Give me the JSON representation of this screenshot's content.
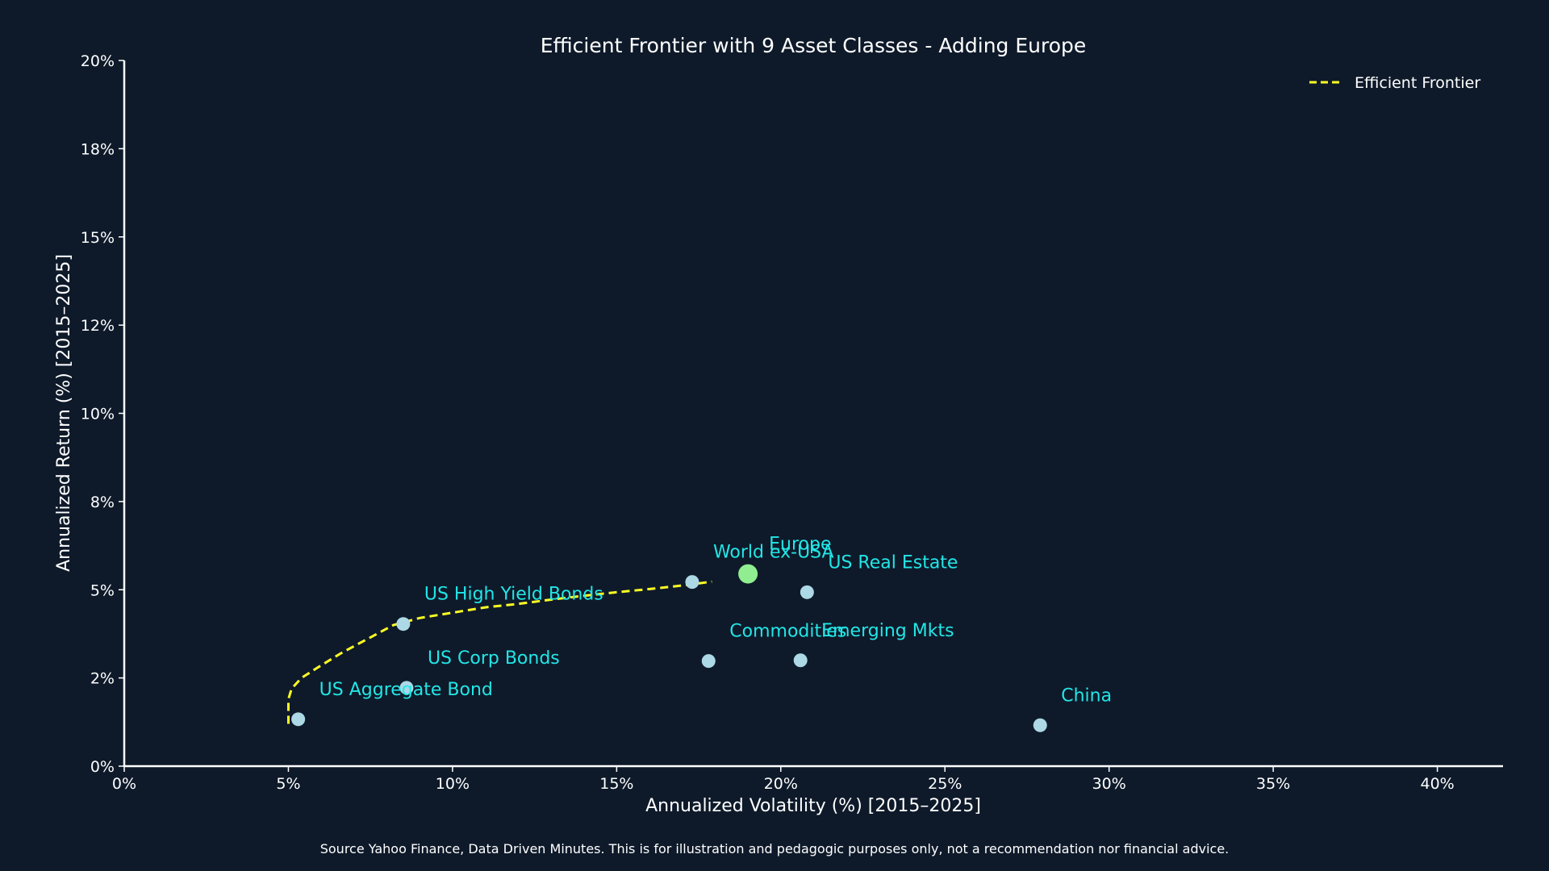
{
  "colors": {
    "background": "#0e1a2a",
    "axis": "#ffffff",
    "text": "#ffffff",
    "frontier": "#ffff22",
    "asset_point": "#add8e6",
    "highlight_point": "#90ee90",
    "asset_label": "#22e6e6"
  },
  "chart_data": {
    "type": "scatter",
    "title": "Efficient Frontier with 9 Asset Classes - Adding Europe",
    "xlabel": "Annualized Volatility (%) [2015–2025]",
    "ylabel": "Annualized Return (%) [2015–2025]",
    "xlim": [
      0,
      42
    ],
    "ylim": [
      0,
      20
    ],
    "xticks": [
      0,
      5,
      10,
      15,
      20,
      25,
      30,
      35,
      40
    ],
    "xtick_labels": [
      "0%",
      "5%",
      "10%",
      "15%",
      "20%",
      "25%",
      "30%",
      "35%",
      "40%"
    ],
    "yticks": [
      0,
      2.5,
      5,
      7.5,
      10,
      12.5,
      15,
      17.5,
      20
    ],
    "ytick_labels": [
      "0%",
      "2%",
      "5%",
      "8%",
      "10%",
      "12%",
      "15%",
      "18%",
      "20%"
    ],
    "grid": false,
    "legend": {
      "position": "top-right",
      "entries": [
        {
          "label": "Efficient Frontier",
          "style": "dashed-line"
        }
      ]
    },
    "series": [
      {
        "name": "Efficient Frontier",
        "kind": "line",
        "x": [
          5.0,
          5.0,
          5.1,
          5.4,
          5.9,
          6.6,
          7.4,
          8.2,
          9.0,
          10.0,
          11.0,
          12.0,
          13.0,
          14.0,
          15.0,
          16.0,
          17.0,
          17.9
        ],
        "y": [
          1.2,
          1.9,
          2.2,
          2.5,
          2.8,
          3.2,
          3.6,
          4.0,
          4.2,
          4.35,
          4.5,
          4.6,
          4.72,
          4.83,
          4.93,
          5.02,
          5.12,
          5.23
        ]
      },
      {
        "kind": "points",
        "points": [
          {
            "label": "US Aggregate Bond",
            "x": 5.3,
            "y": 1.33
          },
          {
            "label": "US Corp Bonds",
            "x": 8.6,
            "y": 2.22
          },
          {
            "label": "US High Yield Bonds",
            "x": 8.5,
            "y": 4.03
          },
          {
            "label": "World ex-USA",
            "x": 17.3,
            "y": 5.22
          },
          {
            "label": "Europe",
            "x": 19.0,
            "y": 5.45,
            "highlight": true
          },
          {
            "label": "US Real Estate",
            "x": 20.8,
            "y": 4.93
          },
          {
            "label": "Commodities",
            "x": 17.8,
            "y": 2.98
          },
          {
            "label": "Emerging Mkts",
            "x": 20.6,
            "y": 3.0
          },
          {
            "label": "China",
            "x": 27.9,
            "y": 1.16
          }
        ]
      }
    ]
  },
  "footer": {
    "source_note": "Source Yahoo Finance, Data Driven Minutes. This is for illustration and pedagogic purposes only, not a recommendation nor financial advice."
  }
}
